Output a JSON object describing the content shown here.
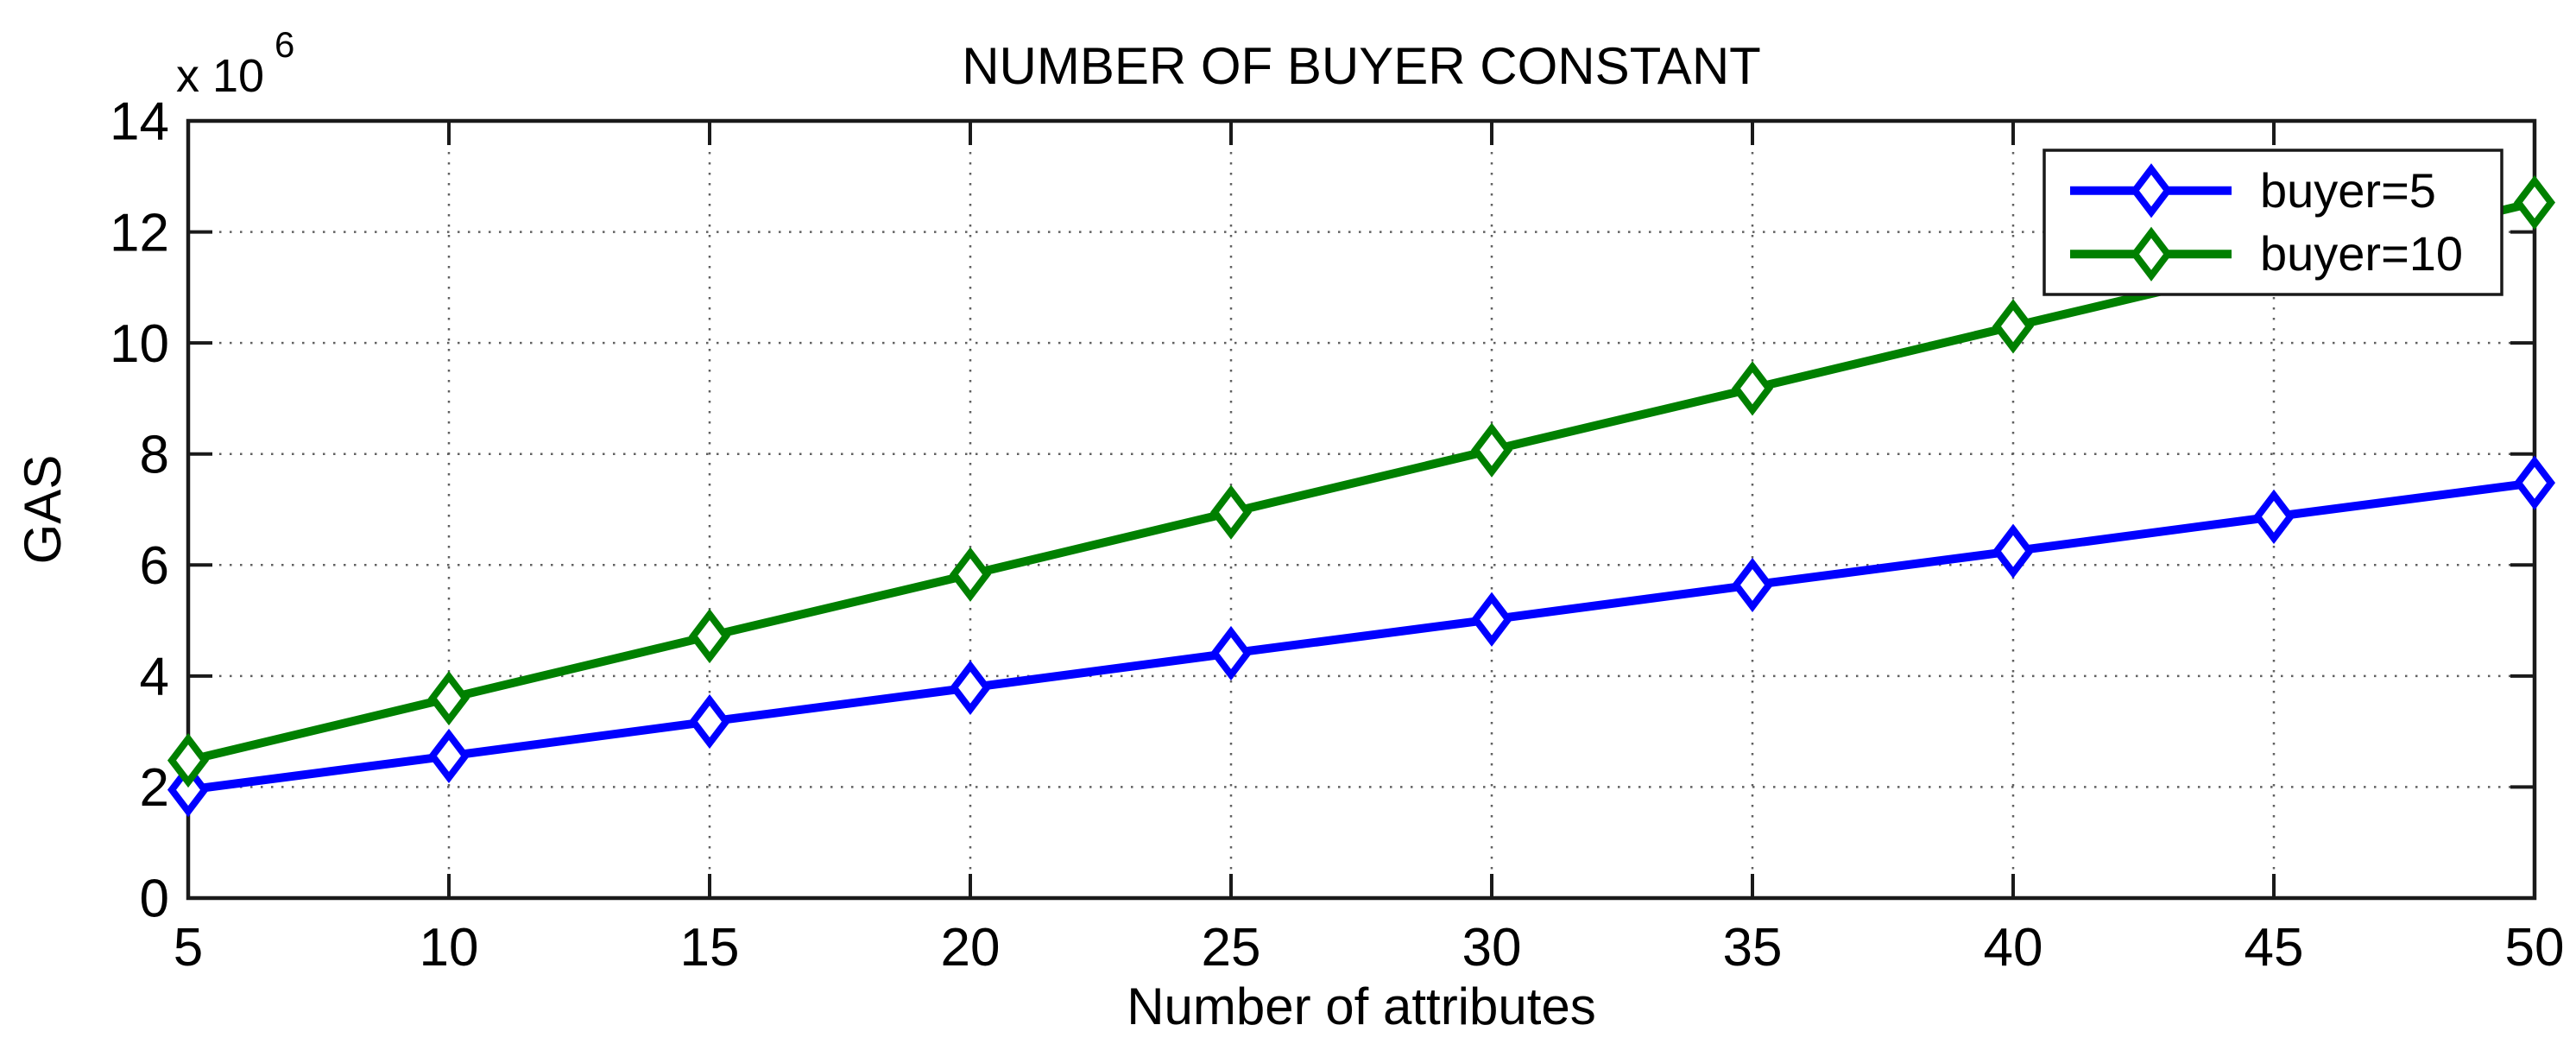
{
  "chart_data": {
    "type": "line",
    "title": "NUMBER OF BUYER CONSTANT",
    "xlabel": "Number of attributes",
    "ylabel": "GAS",
    "y_multiplier_label": "x 10",
    "y_multiplier_exponent": "6",
    "xlim": [
      5,
      50
    ],
    "ylim_millions": [
      0,
      14
    ],
    "xticks": [
      5,
      10,
      15,
      20,
      25,
      30,
      35,
      40,
      45,
      50
    ],
    "yticks_millions": [
      0,
      2,
      4,
      6,
      8,
      10,
      12,
      14
    ],
    "grid": "dotted",
    "legend_position": "northeast",
    "x": [
      5,
      10,
      15,
      20,
      25,
      30,
      35,
      40,
      45,
      50
    ],
    "series": [
      {
        "name": "buyer=5",
        "color": "#0000ff",
        "marker": "diamond",
        "values_millions": [
          1.95,
          2.56,
          3.18,
          3.79,
          4.41,
          5.02,
          5.64,
          6.25,
          6.87,
          7.48
        ]
      },
      {
        "name": "buyer=10",
        "color": "#008000",
        "marker": "diamond",
        "values_millions": [
          2.48,
          3.6,
          4.72,
          5.83,
          6.95,
          8.07,
          9.18,
          10.3,
          11.41,
          12.53
        ]
      }
    ],
    "colors": {
      "frame": "#1a1a1a",
      "grid": "#606060",
      "background": "#ffffff",
      "text": "#000000"
    }
  }
}
